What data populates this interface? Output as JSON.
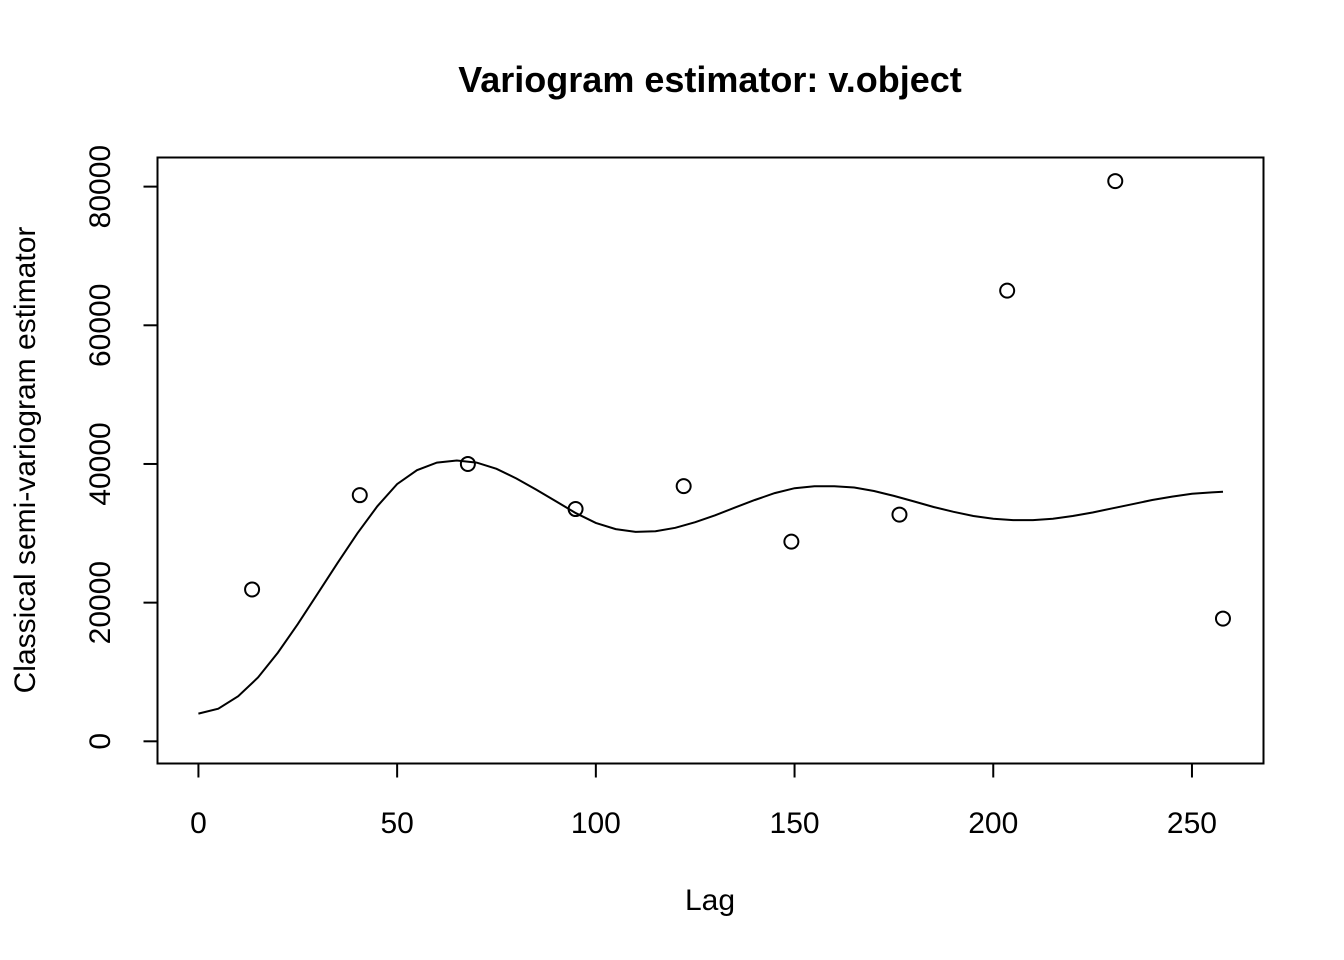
{
  "chart_data": {
    "type": "scatter",
    "title": "Variogram estimator: v.object",
    "xlabel": "Lag",
    "ylabel": "Classical semi-variogram estimator",
    "xlim": [
      -10.3,
      268
    ],
    "ylim": [
      -3200,
      84200
    ],
    "x_ticks": [
      0,
      50,
      100,
      150,
      200,
      250
    ],
    "y_ticks": [
      0,
      20000,
      40000,
      60000,
      80000
    ],
    "x_tick_labels": [
      "0",
      "50",
      "100",
      "150",
      "200",
      "250"
    ],
    "y_tick_labels": [
      "0",
      "20000",
      "40000",
      "60000",
      "80000"
    ],
    "grid": false,
    "legend": "none",
    "series": [
      {
        "type": "scatter",
        "marker": "open-circle",
        "x": [
          13.5,
          40.6,
          67.8,
          94.9,
          122.1,
          149.2,
          176.4,
          203.5,
          230.7,
          257.8
        ],
        "y": [
          21900,
          35500,
          40000,
          33500,
          36800,
          28800,
          32700,
          65000,
          80800,
          17700
        ]
      },
      {
        "type": "line",
        "x": [
          0,
          5,
          10,
          15,
          20,
          25,
          30,
          35,
          40,
          45,
          50,
          55,
          60,
          65,
          70,
          75,
          80,
          85,
          90,
          95,
          100,
          105,
          110,
          115,
          120,
          125,
          130,
          135,
          140,
          145,
          150,
          155,
          160,
          165,
          170,
          175,
          180,
          185,
          190,
          195,
          200,
          205,
          210,
          215,
          220,
          225,
          230,
          235,
          240,
          245,
          250,
          255,
          257.8
        ],
        "y": [
          4000,
          4700,
          6500,
          9200,
          12800,
          16900,
          21300,
          25700,
          30000,
          33900,
          37100,
          39100,
          40200,
          40500,
          40200,
          39300,
          37900,
          36300,
          34600,
          32900,
          31500,
          30600,
          30200,
          30300,
          30800,
          31600,
          32600,
          33700,
          34800,
          35800,
          36500,
          36800,
          36800,
          36600,
          36100,
          35400,
          34600,
          33800,
          33100,
          32500,
          32100,
          31900,
          31900,
          32100,
          32500,
          33000,
          33600,
          34200,
          34800,
          35300,
          35700,
          35900,
          36000
        ]
      }
    ]
  }
}
